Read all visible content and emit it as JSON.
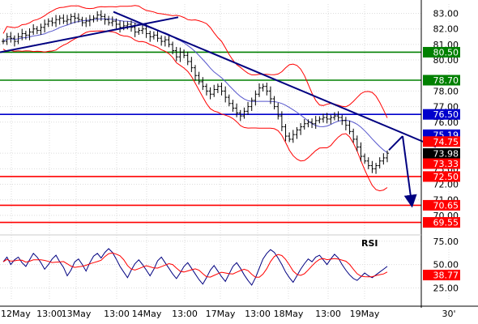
{
  "chart_data": [
    {
      "type": "candlestick",
      "title": "",
      "grid": true,
      "legend": "none",
      "y_axis_side": "right",
      "ylim": [
        68.9,
        83.6
      ],
      "y_ticks": [
        "83.00",
        "82.00",
        "81.00",
        "80.00",
        "78.00",
        "77.00",
        "76.00",
        "74.00",
        "73.00",
        "72.00",
        "71.00",
        "70.00"
      ],
      "x_ticks": [
        "12May",
        "13:00",
        "13May",
        "13:00",
        "14May",
        "13:00",
        "17May",
        "13:00",
        "18May",
        "13:00",
        "19May",
        "30'"
      ],
      "horizontal_levels": [
        {
          "value": 80.5,
          "label": "80.50",
          "color": "#008000"
        },
        {
          "value": 78.7,
          "label": "78.70",
          "color": "#008000"
        },
        {
          "value": 76.5,
          "label": "76.50",
          "color": "#0000cc"
        },
        {
          "value": 72.5,
          "label": "72.50",
          "color": "#ff0000"
        },
        {
          "value": 70.65,
          "label": "70.65",
          "color": "#ff0000"
        },
        {
          "value": 69.55,
          "label": "69.55",
          "color": "#ff0000"
        }
      ],
      "price_tags": [
        {
          "value": 75.19,
          "label": "75.19",
          "color": "#0000cc"
        },
        {
          "value": 74.75,
          "label": "74.75",
          "color": "#ff0000"
        },
        {
          "value": 73.98,
          "label": "73.98",
          "color": "#000000"
        },
        {
          "value": 73.33,
          "label": "73.33",
          "color": "#ff0000"
        }
      ],
      "trendlines": [
        {
          "name": "support",
          "from": [
            0,
            80.5
          ],
          "to": [
            220,
            82.75
          ],
          "color": "#000080"
        },
        {
          "name": "resistance",
          "from": [
            140,
            83.1
          ],
          "to": [
            538,
            74.4
          ],
          "color": "#000080"
        }
      ],
      "forecast_arrows": [
        {
          "from": [
            480,
            74.2
          ],
          "to": [
            497,
            75.1
          ]
        },
        {
          "from": [
            497,
            75.1
          ],
          "to": [
            508,
            70.8
          ]
        }
      ],
      "close": [
        81.2,
        81.5,
        81.4,
        81.2,
        81.5,
        81.7,
        81.6,
        81.8,
        82.0,
        81.9,
        82.1,
        82.3,
        82.5,
        82.4,
        82.6,
        82.7,
        82.5,
        82.6,
        82.8,
        82.7,
        82.6,
        82.4,
        82.5,
        82.6,
        82.7,
        82.9,
        82.8,
        82.6,
        82.4,
        82.5,
        82.3,
        82.1,
        82.2,
        82.3,
        82.1,
        81.8,
        81.9,
        82.0,
        81.7,
        81.5,
        81.6,
        81.4,
        81.2,
        81.3,
        81.0,
        80.6,
        80.2,
        80.5,
        80.3,
        79.9,
        79.5,
        79.0,
        78.6,
        78.3,
        78.0,
        77.8,
        78.1,
        78.3,
        78.0,
        77.6,
        77.2,
        76.9,
        76.6,
        76.4,
        76.7,
        77.0,
        77.4,
        77.8,
        78.2,
        78.3,
        78.0,
        77.5,
        77.0,
        76.4,
        75.7,
        75.1,
        74.9,
        75.2,
        75.5,
        75.7,
        75.9,
        76.0,
        75.9,
        76.1,
        76.2,
        76.3,
        76.2,
        76.3,
        76.4,
        76.3,
        76.1,
        75.8,
        75.4,
        74.9,
        74.4,
        73.8,
        73.5,
        73.2,
        73.0,
        73.2,
        73.5,
        73.7,
        74.0
      ]
    },
    {
      "type": "line",
      "title": "RSI",
      "ylim": [
        15,
        80
      ],
      "y_ticks": [
        "75.00",
        "50.00",
        "25.00"
      ],
      "y_tag": {
        "value": 38.77,
        "label": "38.77",
        "color": "#ff0000"
      },
      "rsi": [
        53,
        58,
        50,
        55,
        58,
        52,
        48,
        55,
        62,
        58,
        52,
        45,
        50,
        56,
        60,
        53,
        47,
        38,
        44,
        53,
        56,
        50,
        43,
        52,
        59,
        62,
        57,
        63,
        67,
        63,
        56,
        48,
        42,
        36,
        44,
        51,
        55,
        50,
        44,
        38,
        45,
        54,
        58,
        52,
        46,
        40,
        35,
        41,
        48,
        52,
        46,
        40,
        34,
        29,
        36,
        44,
        49,
        43,
        37,
        32,
        40,
        48,
        52,
        46,
        39,
        33,
        28,
        36,
        46,
        56,
        62,
        66,
        63,
        57,
        50,
        42,
        36,
        31,
        38,
        45,
        51,
        56,
        53,
        58,
        60,
        55,
        50,
        56,
        61,
        57,
        50,
        44,
        39,
        35,
        33,
        37,
        41,
        38,
        36,
        39,
        42,
        45,
        48
      ]
    }
  ]
}
